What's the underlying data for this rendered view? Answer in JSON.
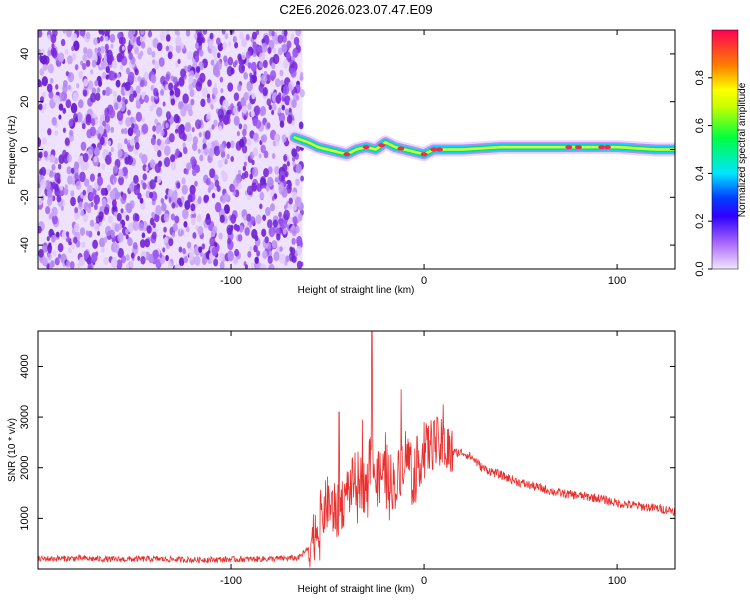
{
  "figure": {
    "title": "C2E6.2026.023.07.47.E09"
  },
  "chart_data": [
    {
      "type": "heatmap",
      "title": "C2E6.2026.023.07.47.E09",
      "xlabel": "Height of straight line (km)",
      "ylabel": "Frequency (Hz)",
      "xlim": [
        -200,
        130
      ],
      "ylim": [
        -50,
        50
      ],
      "xticks": [
        -100,
        0,
        100
      ],
      "xtick_labels": [
        "-100",
        "0",
        "100"
      ],
      "yticks": [
        -40,
        -20,
        0,
        20,
        40
      ],
      "ytick_labels": [
        "-40",
        "-20",
        "0",
        "20",
        "40"
      ],
      "noise_region_x": [
        -200,
        -63
      ],
      "signal_track": {
        "x": [
          -67,
          -60,
          -55,
          -50,
          -45,
          -40,
          -35,
          -30,
          -25,
          -20,
          -15,
          -10,
          -5,
          0,
          5,
          10,
          20,
          40,
          60,
          80,
          100,
          120,
          130
        ],
        "frequency": [
          5,
          3,
          1,
          0,
          -1,
          -2,
          0,
          1,
          0,
          3,
          1,
          0,
          -1,
          -2,
          0,
          0,
          0,
          1,
          1,
          1,
          1,
          0,
          0
        ]
      },
      "colorbar": {
        "label": "Normalized spectral amplitude",
        "range": [
          0,
          1
        ],
        "ticks": [
          0.0,
          0.2,
          0.4,
          0.6,
          0.8
        ],
        "tick_labels": [
          "0.0",
          "0.2",
          "0.4",
          "0.6",
          "0.8"
        ],
        "colormap": [
          "#f2e6ff",
          "#8a2be2",
          "#0000ff",
          "#00e5ff",
          "#00ff40",
          "#ffff00",
          "#ff8000",
          "#ff0055"
        ]
      },
      "colors": {
        "noise": "#7b2bd9",
        "background": "#ffffff"
      }
    },
    {
      "type": "line",
      "xlabel": "Height of straight line (km)",
      "ylabel": "SNR (10 * v/v)",
      "xlim": [
        -200,
        130
      ],
      "ylim": [
        0,
        4700
      ],
      "xticks": [
        -100,
        0,
        100
      ],
      "xtick_labels": [
        "-100",
        "0",
        "100"
      ],
      "yticks": [
        1000,
        2000,
        3000,
        4000
      ],
      "ytick_labels": [
        "1000",
        "2000",
        "3000",
        "4000"
      ],
      "line_color": "#e8312f",
      "series": [
        {
          "x": [
            -200,
            -180,
            -160,
            -140,
            -120,
            -100,
            -80,
            -65,
            -60,
            -55,
            -50,
            -45,
            -40,
            -35,
            -30,
            -27,
            -25,
            -20,
            -15,
            -10,
            -5,
            0,
            5,
            10,
            15,
            20,
            25,
            30,
            40,
            50,
            60,
            70,
            80,
            90,
            100,
            110,
            120,
            130
          ],
          "y": [
            200,
            210,
            190,
            200,
            180,
            190,
            200,
            220,
            400,
            900,
            1300,
            1100,
            1500,
            1800,
            1600,
            2600,
            1700,
            2000,
            1600,
            2300,
            2000,
            2300,
            2500,
            2400,
            2300,
            2300,
            2200,
            2000,
            1850,
            1700,
            1600,
            1500,
            1450,
            1400,
            1300,
            1250,
            1200,
            1150
          ]
        }
      ]
    }
  ]
}
